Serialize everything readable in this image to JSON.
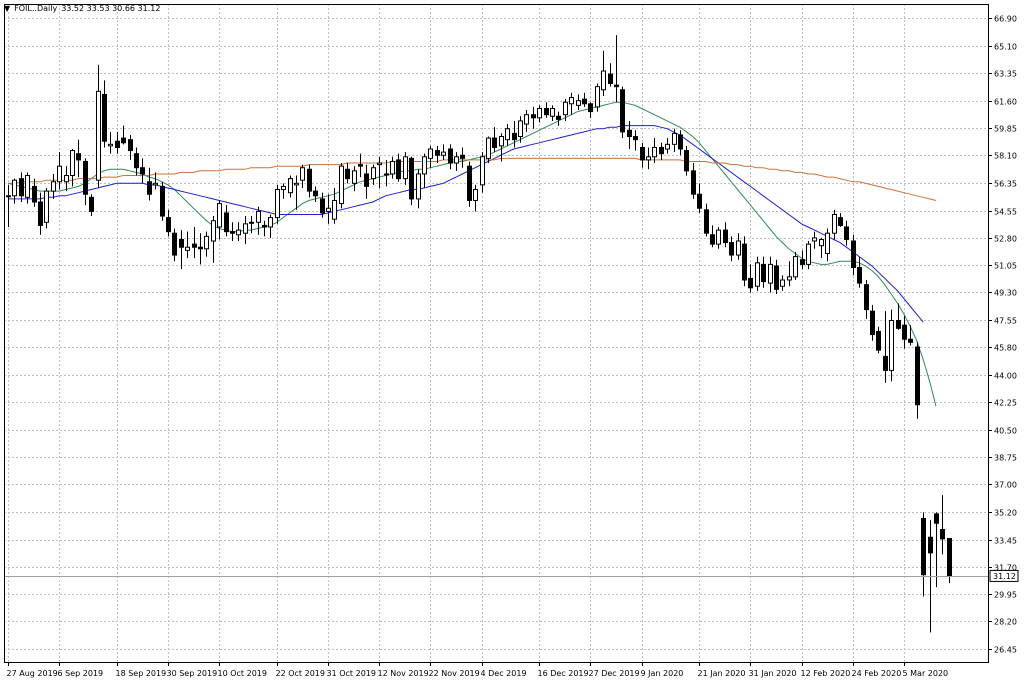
{
  "header": {
    "symbol": "FOIL..Daily",
    "ohlc": "33.52 33.53 30.66 31.12"
  },
  "price_marker": "31.12",
  "chart_data": {
    "type": "candlestick",
    "title": "FOIL..Daily",
    "ohlc_header": [
      33.52,
      33.53,
      30.66,
      31.12
    ],
    "last_price": 31.12,
    "ylim": [
      25.6,
      67.8
    ],
    "y_ticks": [
      "66.90",
      "65.10",
      "63.35",
      "61.60",
      "59.85",
      "58.10",
      "56.35",
      "54.55",
      "52.80",
      "51.05",
      "49.30",
      "47.55",
      "45.80",
      "44.00",
      "42.25",
      "40.50",
      "38.75",
      "37.00",
      "35.20",
      "33.45",
      "31.70",
      "29.95",
      "28.20",
      "26.45"
    ],
    "x_ticks": [
      "27 Aug 2019",
      "6 Sep 2019",
      "18 Sep 2019",
      "30 Sep 2019",
      "10 Oct 2019",
      "22 Oct 2019",
      "31 Oct 2019",
      "12 Nov 2019",
      "22 Nov 2019",
      "4 Dec 2019",
      "16 Dec 2019",
      "27 Dec 2019",
      "9 Jan 2020",
      "21 Jan 2020",
      "31 Jan 2020",
      "12 Feb 2020",
      "24 Feb 2020",
      "5 Mar 2020"
    ],
    "x_tick_index": [
      0,
      8,
      17,
      25,
      33,
      42,
      50,
      58,
      66,
      74,
      83,
      91,
      99,
      108,
      116,
      124,
      132,
      140
    ],
    "candles": [
      [
        55.5,
        56.2,
        53.5,
        55.5
      ],
      [
        55.5,
        56.6,
        55,
        56.5
      ],
      [
        56.6,
        57,
        55.1,
        55.5
      ],
      [
        55.4,
        57,
        55,
        56.8
      ],
      [
        56.1,
        56.6,
        54.8,
        55.1
      ],
      [
        55.1,
        55.7,
        53,
        53.6
      ],
      [
        53.8,
        56,
        53.4,
        55.8
      ],
      [
        55.8,
        56.9,
        55.3,
        56.4
      ],
      [
        56.4,
        58.3,
        55.9,
        57.4
      ],
      [
        56.4,
        57.4,
        55.8,
        56.8
      ],
      [
        56.8,
        58.5,
        56.1,
        58.4
      ],
      [
        58.2,
        59.1,
        56.7,
        57.8
      ],
      [
        57.7,
        57.9,
        54.9,
        55.6
      ],
      [
        55.4,
        55.6,
        54.2,
        54.5
      ],
      [
        56.5,
        63.9,
        56,
        62.2
      ],
      [
        62,
        62.9,
        58.6,
        59
      ],
      [
        58.7,
        59.6,
        58.2,
        58.8
      ],
      [
        59,
        59.6,
        58.2,
        58.6
      ],
      [
        59.2,
        60,
        58.8,
        58.9
      ],
      [
        59.1,
        59.4,
        57.8,
        58.4
      ],
      [
        58.2,
        58.6,
        56.8,
        57.3
      ],
      [
        57.3,
        57.9,
        56.3,
        56.9
      ],
      [
        56.4,
        57.3,
        55.2,
        55.6
      ],
      [
        56.2,
        57,
        55.9,
        56.3
      ],
      [
        56.1,
        56.4,
        53.9,
        54.2
      ],
      [
        54.1,
        54.6,
        52.9,
        53.2
      ],
      [
        53.1,
        53.4,
        51.3,
        51.7
      ],
      [
        52.7,
        53.3,
        50.8,
        52.2
      ],
      [
        52,
        53.2,
        51.5,
        52.2
      ],
      [
        52.4,
        53.5,
        51.5,
        52.2
      ],
      [
        52.2,
        53.1,
        51.1,
        52.1
      ],
      [
        52.1,
        53.2,
        51.6,
        52.9
      ],
      [
        52.6,
        54.2,
        51.2,
        53.9
      ],
      [
        53.5,
        55.2,
        52.7,
        55
      ],
      [
        54.4,
        54.9,
        52.9,
        53.2
      ],
      [
        53.2,
        53.8,
        52.6,
        53.1
      ],
      [
        53,
        53.8,
        52.6,
        53.3
      ],
      [
        53.1,
        54.2,
        52.4,
        53.7
      ],
      [
        53.8,
        54.2,
        53.1,
        53.8
      ],
      [
        53.8,
        54.8,
        53,
        54.5
      ],
      [
        53.6,
        53.9,
        52.9,
        53.5
      ],
      [
        53.5,
        54.3,
        52.8,
        54.1
      ],
      [
        54.1,
        56.2,
        53.7,
        55.9
      ],
      [
        55.9,
        56.3,
        55.3,
        56.1
      ],
      [
        55.7,
        56.8,
        55.4,
        56.6
      ],
      [
        56.2,
        56.8,
        54.6,
        56.3
      ],
      [
        56.5,
        57.5,
        56,
        57.3
      ],
      [
        57.2,
        57.5,
        55.4,
        55.8
      ],
      [
        55.8,
        56.1,
        55.1,
        55.5
      ],
      [
        55.3,
        55.7,
        54.1,
        54.4
      ],
      [
        54.5,
        55.6,
        53.7,
        54.7
      ],
      [
        54,
        56,
        53.7,
        55.2
      ],
      [
        55,
        57.6,
        54.7,
        57.4
      ],
      [
        57.2,
        57.6,
        56.3,
        56.6
      ],
      [
        56.3,
        57.4,
        55.8,
        57.1
      ],
      [
        57.5,
        58.2,
        56.7,
        57.4
      ],
      [
        56.9,
        57.5,
        55.3,
        56.1
      ],
      [
        56.6,
        57.5,
        56.2,
        57.3
      ],
      [
        57.5,
        58,
        56,
        57.6
      ],
      [
        56.9,
        57.8,
        56.1,
        56.9
      ],
      [
        56.9,
        58,
        56.6,
        57.7
      ],
      [
        57.8,
        58.2,
        56.4,
        56.6
      ],
      [
        56.6,
        58.3,
        56.2,
        58
      ],
      [
        57.9,
        58,
        54.9,
        55.3
      ],
      [
        55.3,
        57.2,
        54.7,
        56.9
      ],
      [
        56.9,
        58.2,
        56,
        58
      ],
      [
        57.9,
        58.7,
        57.3,
        58.5
      ],
      [
        58.4,
        58.7,
        57.6,
        58.1
      ],
      [
        58.1,
        58.8,
        57.8,
        58.3
      ],
      [
        58.5,
        58.8,
        57.2,
        57.6
      ],
      [
        57.6,
        58.3,
        57.1,
        58
      ],
      [
        58.1,
        58.6,
        57.3,
        57.9
      ],
      [
        57.4,
        57.7,
        54.8,
        55.2
      ],
      [
        55.2,
        56.2,
        54.5,
        55.9
      ],
      [
        56.2,
        58.3,
        55.7,
        58
      ],
      [
        57.9,
        59.3,
        57.6,
        59.2
      ],
      [
        59.2,
        59.9,
        58.3,
        58.6
      ],
      [
        58.7,
        59.5,
        57.7,
        59.3
      ],
      [
        59.1,
        60.1,
        58.7,
        59.8
      ],
      [
        59.5,
        60.3,
        58.6,
        59.1
      ],
      [
        59.3,
        60.6,
        58.9,
        60.3
      ],
      [
        60.1,
        61,
        59.6,
        60.7
      ],
      [
        60.7,
        61.2,
        59.8,
        60.5
      ],
      [
        60.5,
        61.3,
        60.2,
        61.1
      ],
      [
        61.1,
        61.5,
        60.5,
        60.7
      ],
      [
        60.6,
        61.3,
        60.3,
        61.1
      ],
      [
        60.6,
        60.9,
        60,
        60.4
      ],
      [
        60.7,
        61.7,
        60.3,
        61.5
      ],
      [
        61.4,
        62.1,
        60.7,
        61.8
      ],
      [
        61.3,
        62,
        61,
        61.6
      ],
      [
        61.7,
        62.1,
        61.2,
        61.4
      ],
      [
        61.4,
        61.5,
        60.5,
        60.9
      ],
      [
        61.2,
        62.7,
        60.9,
        62.5
      ],
      [
        62.3,
        64.8,
        61.9,
        63.5
      ],
      [
        63.3,
        64,
        62.5,
        62.7
      ],
      [
        62.6,
        65.8,
        61.5,
        62.5
      ],
      [
        62.3,
        62.5,
        59.2,
        59.6
      ],
      [
        59.7,
        60.3,
        58.5,
        59.3
      ],
      [
        59.3,
        59.7,
        58.4,
        59.1
      ],
      [
        58.6,
        58.9,
        57.3,
        57.8
      ],
      [
        57.8,
        58.6,
        57.2,
        58
      ],
      [
        58,
        59.2,
        57.6,
        58.6
      ],
      [
        58.6,
        58.9,
        57.8,
        58.2
      ],
      [
        58.5,
        59.2,
        58.2,
        58.8
      ],
      [
        58.8,
        59.8,
        58.3,
        59.5
      ],
      [
        59.4,
        59.7,
        58.1,
        58.5
      ],
      [
        58.4,
        58.7,
        56.8,
        57.1
      ],
      [
        57.1,
        57.6,
        55.3,
        55.6
      ],
      [
        55.6,
        56.3,
        54.4,
        54.7
      ],
      [
        54.6,
        55,
        52.9,
        53.1
      ],
      [
        53,
        53.6,
        52.2,
        52.4
      ],
      [
        52.4,
        53.5,
        52.1,
        53.3
      ],
      [
        53.3,
        53.8,
        52.2,
        52.5
      ],
      [
        52.5,
        52.9,
        51.3,
        51.7
      ],
      [
        51.7,
        53.1,
        51.4,
        52.6
      ],
      [
        52.4,
        52.9,
        49.7,
        50.1
      ],
      [
        50.2,
        51.1,
        49.3,
        49.6
      ],
      [
        49.7,
        51.6,
        49.4,
        51.2
      ],
      [
        51.1,
        51.6,
        49.6,
        50
      ],
      [
        49.9,
        51.6,
        49.3,
        51.1
      ],
      [
        51,
        51.4,
        49.2,
        49.5
      ],
      [
        49.7,
        50.4,
        49.4,
        50.1
      ],
      [
        50.1,
        51.3,
        49.7,
        50.3
      ],
      [
        50.3,
        51.9,
        50.1,
        51.6
      ],
      [
        51.4,
        52,
        50.8,
        51.1
      ],
      [
        51.1,
        52.6,
        50.8,
        52.4
      ],
      [
        52.6,
        53.2,
        52.1,
        52.8
      ],
      [
        52.3,
        52.8,
        51.5,
        52.7
      ],
      [
        51.8,
        53.4,
        51.3,
        53.1
      ],
      [
        53.1,
        54.6,
        52.7,
        54.3
      ],
      [
        54.1,
        54.4,
        53.5,
        53.6
      ],
      [
        53.5,
        53.9,
        52.3,
        52.7
      ],
      [
        52.6,
        53,
        50.4,
        50.9
      ],
      [
        50.9,
        51.6,
        49.6,
        49.9
      ],
      [
        49.8,
        50.1,
        47.6,
        48.2
      ],
      [
        48.1,
        48.5,
        46.2,
        46.6
      ],
      [
        46.8,
        47.1,
        45.4,
        45.6
      ],
      [
        45.2,
        48.1,
        43.5,
        44.3
      ],
      [
        44.3,
        48.2,
        43.6,
        47.5
      ],
      [
        47.5,
        48.6,
        46.9,
        47
      ],
      [
        47.2,
        47.8,
        45.7,
        46.3
      ],
      [
        46.3,
        47.2,
        45.9,
        46.1
      ],
      [
        45.8,
        46.1,
        41.2,
        42.1
      ],
      [
        34.8,
        35.2,
        29.8,
        31.2
      ],
      [
        33.6,
        34.7,
        27.5,
        32.6
      ],
      [
        35.1,
        35.2,
        30.4,
        34.5
      ],
      [
        34.1,
        36.3,
        32.5,
        33.5
      ],
      [
        33.52,
        33.53,
        30.66,
        31.12
      ]
    ],
    "series": [
      {
        "type": "line",
        "color": "#2e8b57",
        "values": [
          56.3,
          56.2,
          56.1,
          56.0,
          55.9,
          55.8,
          55.8,
          55.8,
          55.8,
          55.9,
          56.0,
          56.1,
          56.3,
          56.6,
          56.9,
          57.1,
          57.2,
          57.2,
          57.2,
          57.1,
          57.0,
          56.9,
          56.7,
          56.6,
          56.4,
          56.2,
          55.9,
          55.5,
          55.1,
          54.7,
          54.3,
          53.9,
          53.6,
          53.4,
          53.3,
          53.2,
          53.2,
          53.3,
          53.3,
          53.4,
          53.5,
          53.6,
          53.8,
          54.1,
          54.4,
          54.7,
          55.0,
          55.2,
          55.3,
          55.4,
          55.5,
          55.6,
          55.8,
          56.0,
          56.2,
          56.4,
          56.5,
          56.6,
          56.7,
          56.8,
          56.9,
          57.0,
          57.1,
          57.1,
          57.2,
          57.2,
          57.3,
          57.4,
          57.5,
          57.6,
          57.7,
          57.7,
          57.8,
          57.9,
          58.0,
          58.1,
          58.3,
          58.5,
          58.7,
          58.9,
          59.1,
          59.3,
          59.5,
          59.7,
          59.9,
          60.1,
          60.3,
          60.5,
          60.7,
          60.9,
          61.0,
          61.1,
          61.2,
          61.3,
          61.4,
          61.5,
          61.5,
          61.4,
          61.3,
          61.1,
          60.9,
          60.7,
          60.5,
          60.3,
          60.1,
          59.9,
          59.6,
          59.3,
          58.9,
          58.4,
          57.9,
          57.4,
          56.9,
          56.4,
          55.9,
          55.4,
          54.9,
          54.4,
          53.9,
          53.4,
          52.9,
          52.5,
          52.1,
          51.8,
          51.5,
          51.3,
          51.2,
          51.1,
          51.1,
          51.2,
          51.3,
          51.3,
          51.3,
          51.2,
          51.0,
          50.7,
          50.3,
          49.8,
          49.2,
          48.6,
          47.9,
          47.1,
          46.2,
          45.0,
          43.6,
          42.0
        ]
      },
      {
        "type": "line",
        "color": "#1f1fcf",
        "values": [
          55.3,
          55.3,
          55.3,
          55.3,
          55.3,
          55.3,
          55.4,
          55.4,
          55.5,
          55.5,
          55.6,
          55.7,
          55.8,
          55.9,
          56.0,
          56.1,
          56.2,
          56.3,
          56.3,
          56.3,
          56.3,
          56.3,
          56.2,
          56.2,
          56.1,
          56.0,
          55.9,
          55.8,
          55.7,
          55.6,
          55.5,
          55.4,
          55.3,
          55.2,
          55.1,
          55.0,
          54.9,
          54.8,
          54.7,
          54.6,
          54.5,
          54.4,
          54.3,
          54.3,
          54.3,
          54.3,
          54.3,
          54.3,
          54.3,
          54.3,
          54.4,
          54.5,
          54.6,
          54.7,
          54.8,
          54.9,
          55.0,
          55.1,
          55.3,
          55.5,
          55.6,
          55.7,
          55.8,
          55.9,
          55.9,
          56.0,
          56.1,
          56.2,
          56.3,
          56.5,
          56.7,
          56.9,
          57.1,
          57.3,
          57.5,
          57.7,
          57.9,
          58.1,
          58.3,
          58.5,
          58.6,
          58.7,
          58.8,
          58.9,
          59.0,
          59.1,
          59.2,
          59.3,
          59.4,
          59.5,
          59.6,
          59.7,
          59.8,
          59.8,
          59.9,
          59.9,
          60.0,
          60.0,
          60.0,
          60.0,
          60.0,
          60.0,
          59.9,
          59.8,
          59.6,
          59.4,
          59.1,
          58.8,
          58.5,
          58.2,
          57.9,
          57.6,
          57.3,
          57.0,
          56.7,
          56.4,
          56.1,
          55.8,
          55.5,
          55.2,
          54.9,
          54.6,
          54.3,
          54.0,
          53.7,
          53.5,
          53.3,
          53.1,
          52.9,
          52.7,
          52.5,
          52.2,
          51.9,
          51.6,
          51.3,
          51.0,
          50.6,
          50.2,
          49.8,
          49.4,
          48.9,
          48.4,
          47.9,
          47.4
        ]
      },
      {
        "type": "line",
        "color": "#c8733a",
        "values": [
          56.3,
          56.3,
          56.4,
          56.4,
          56.4,
          56.4,
          56.5,
          56.5,
          56.5,
          56.5,
          56.5,
          56.6,
          56.6,
          56.6,
          56.6,
          56.7,
          56.7,
          56.7,
          56.8,
          56.8,
          56.8,
          56.8,
          56.8,
          56.9,
          56.9,
          56.9,
          56.9,
          57.0,
          57.0,
          57.0,
          57.1,
          57.1,
          57.1,
          57.1,
          57.2,
          57.2,
          57.2,
          57.2,
          57.3,
          57.3,
          57.3,
          57.3,
          57.4,
          57.4,
          57.4,
          57.4,
          57.4,
          57.5,
          57.5,
          57.5,
          57.5,
          57.5,
          57.5,
          57.6,
          57.6,
          57.6,
          57.6,
          57.6,
          57.6,
          57.6,
          57.7,
          57.7,
          57.7,
          57.7,
          57.7,
          57.7,
          57.7,
          57.7,
          57.8,
          57.8,
          57.8,
          57.8,
          57.8,
          57.8,
          57.8,
          57.8,
          57.8,
          57.9,
          57.9,
          57.9,
          57.9,
          57.9,
          57.9,
          57.9,
          57.9,
          57.9,
          57.9,
          57.9,
          57.9,
          57.9,
          57.9,
          57.9,
          57.9,
          57.9,
          57.9,
          57.9,
          57.9,
          57.9,
          57.9,
          57.8,
          57.8,
          57.8,
          57.8,
          57.8,
          57.8,
          57.8,
          57.7,
          57.7,
          57.7,
          57.7,
          57.6,
          57.6,
          57.6,
          57.5,
          57.5,
          57.4,
          57.4,
          57.3,
          57.3,
          57.2,
          57.2,
          57.1,
          57.1,
          57.0,
          57.0,
          56.9,
          56.9,
          56.8,
          56.7,
          56.7,
          56.6,
          56.5,
          56.4,
          56.4,
          56.3,
          56.2,
          56.1,
          56.0,
          55.9,
          55.8,
          55.7,
          55.6,
          55.5,
          55.4,
          55.3,
          55.2
        ]
      }
    ],
    "grid": true,
    "colors": {
      "up_fill": "#ffffff",
      "down_fill": "#000000",
      "candle_edge": "#000000",
      "grid": "#c0c0c0",
      "background": "#ffffff"
    }
  }
}
